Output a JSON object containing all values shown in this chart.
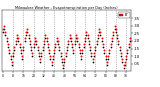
{
  "title": "Milwaukee Weather - Evapotranspiration per Day (Inches)",
  "background": "#ffffff",
  "dot_color_red": "#ff0000",
  "dot_color_black": "#000000",
  "legend_label": "ET",
  "legend_color": "#ff0000",
  "ylim": [
    0.0,
    0.4
  ],
  "yticks": [
    0.05,
    0.1,
    0.15,
    0.2,
    0.25,
    0.3,
    0.35
  ],
  "ytick_labels": [
    ".05",
    ".10",
    ".15",
    ".20",
    ".25",
    ".30",
    ".35"
  ],
  "values_red": [
    0.28,
    0.3,
    0.26,
    0.22,
    0.18,
    0.14,
    0.1,
    0.06,
    0.12,
    0.16,
    0.2,
    0.24,
    0.22,
    0.18,
    0.14,
    0.1,
    0.16,
    0.22,
    0.26,
    0.28,
    0.24,
    0.2,
    0.16,
    0.12,
    0.18,
    0.22,
    0.2,
    0.16,
    0.12,
    0.08,
    0.12,
    0.16,
    0.2,
    0.24,
    0.22,
    0.18,
    0.14,
    0.1,
    0.06,
    0.1,
    0.14,
    0.18,
    0.22,
    0.2,
    0.16,
    0.12,
    0.08,
    0.04,
    0.08,
    0.12,
    0.16,
    0.2,
    0.24,
    0.22,
    0.18,
    0.14,
    0.2,
    0.24,
    0.22,
    0.18,
    0.14,
    0.1,
    0.14,
    0.18,
    0.22,
    0.26,
    0.24,
    0.2,
    0.16,
    0.12,
    0.08,
    0.12,
    0.16,
    0.2,
    0.24,
    0.28,
    0.26,
    0.22,
    0.18,
    0.14,
    0.1,
    0.06,
    0.1,
    0.14,
    0.18,
    0.22,
    0.26,
    0.3,
    0.28,
    0.24,
    0.2,
    0.16,
    0.12,
    0.08,
    0.04,
    0.06,
    0.1,
    0.14,
    0.18,
    0.22
  ],
  "values_black": [
    0.26,
    0.28,
    0.24,
    0.2,
    0.16,
    0.12,
    0.08,
    0.04,
    0.1,
    0.14,
    0.18,
    0.22,
    0.2,
    0.16,
    0.12,
    0.08,
    0.14,
    0.2,
    0.24,
    0.26,
    0.22,
    0.18,
    0.14,
    0.1,
    0.16,
    0.2,
    0.18,
    0.14,
    0.1,
    0.06,
    0.1,
    0.14,
    0.18,
    0.22,
    0.2,
    0.16,
    0.12,
    0.08,
    0.04,
    0.08,
    0.12,
    0.16,
    0.2,
    0.18,
    0.14,
    0.1,
    0.06,
    0.02,
    0.06,
    0.1,
    0.14,
    0.18,
    0.22,
    0.2,
    0.16,
    0.12,
    0.18,
    0.22,
    0.2,
    0.16,
    0.12,
    0.08,
    0.12,
    0.16,
    0.2,
    0.24,
    0.22,
    0.18,
    0.14,
    0.1,
    0.06,
    0.1,
    0.14,
    0.18,
    0.22,
    0.26,
    0.24,
    0.2,
    0.16,
    0.12,
    0.08,
    0.04,
    0.08,
    0.12,
    0.16,
    0.2,
    0.24,
    0.28,
    0.26,
    0.22,
    0.18,
    0.14,
    0.1,
    0.06,
    0.02,
    0.04,
    0.08,
    0.12,
    0.16,
    0.2
  ],
  "vline_positions": [
    8,
    16,
    24,
    32,
    40,
    48,
    56,
    64,
    72,
    80,
    88,
    96
  ],
  "n_points": 100,
  "xtick_positions": [
    0,
    8,
    16,
    24,
    32,
    40,
    48,
    56,
    64,
    72,
    80,
    88,
    96
  ],
  "xtick_labels": [
    "0",
    "8",
    "16",
    "24",
    "32",
    "40",
    "48",
    "56",
    "64",
    "72",
    "80",
    "88",
    "96"
  ]
}
